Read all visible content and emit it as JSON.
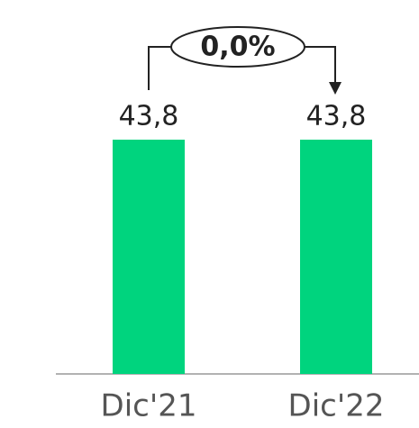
{
  "chart_data": {
    "type": "bar",
    "categories": [
      "Dic'21",
      "Dic'22"
    ],
    "values": [
      43.8,
      43.8
    ],
    "value_labels": [
      "43,8",
      "43,8"
    ],
    "color": "#00d47e",
    "annotation": "0,0%"
  }
}
